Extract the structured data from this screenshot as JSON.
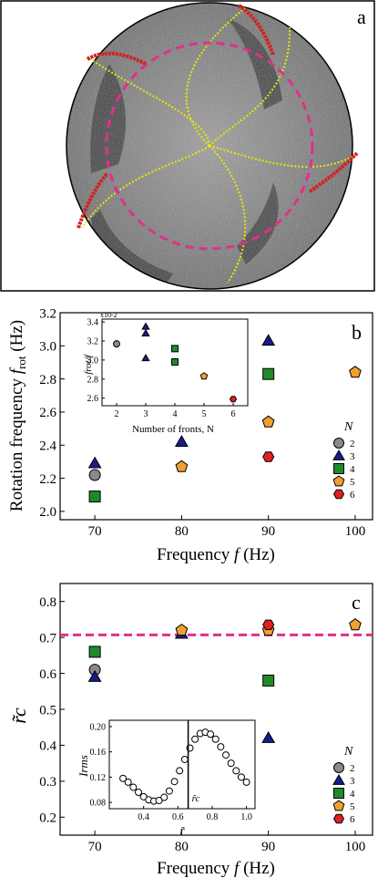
{
  "panels": {
    "a": {
      "label": "a"
    },
    "b": {
      "label": "b"
    },
    "c": {
      "label": "c"
    }
  },
  "legend_b": {
    "title": "N",
    "entries": [
      "2",
      "3",
      "4",
      "5",
      "6"
    ]
  },
  "legend_c": {
    "title": "N",
    "entries": [
      "2",
      "3",
      "4",
      "5",
      "6"
    ]
  },
  "colors": {
    "N2": "#8a8a8a",
    "N3": "#1a1a8c",
    "N4": "#1f8a2a",
    "N5": "#f0a030",
    "N6": "#e02020",
    "dashed": "#e0308a",
    "yellow": "#e8e800"
  },
  "chart_data": [
    {
      "panel": "b",
      "type": "scatter",
      "xlabel_main": "Frequency ",
      "xlabel_italic": "f",
      "xlabel_unit": " (Hz)",
      "ylabel_main": "Rotation frequency ",
      "ylabel_italic": "f",
      "ylabel_sub": "rot",
      "ylabel_unit": " (Hz)",
      "xlim": [
        66,
        102
      ],
      "ylim": [
        1.95,
        3.2
      ],
      "xticks": [
        "70",
        "80",
        "90",
        "100"
      ],
      "yticks": [
        "2.0",
        "2.2",
        "2.4",
        "2.6",
        "2.8",
        "3.0",
        "3.2"
      ],
      "series": [
        {
          "name": "2",
          "points": [
            {
              "x": 70,
              "y": 2.22
            }
          ]
        },
        {
          "name": "3",
          "points": [
            {
              "x": 70,
              "y": 2.29
            },
            {
              "x": 80,
              "y": 2.42
            },
            {
              "x": 90,
              "y": 3.03
            }
          ]
        },
        {
          "name": "4",
          "points": [
            {
              "x": 70,
              "y": 2.09
            },
            {
              "x": 90,
              "y": 2.83
            }
          ]
        },
        {
          "name": "5",
          "points": [
            {
              "x": 80,
              "y": 2.27
            },
            {
              "x": 90,
              "y": 2.54
            },
            {
              "x": 100,
              "y": 2.84
            }
          ]
        },
        {
          "name": "6",
          "points": [
            {
              "x": 90,
              "y": 2.33
            }
          ]
        }
      ]
    },
    {
      "panel": "b-inset",
      "type": "scatter",
      "xlabel": "Number of fronts, N",
      "ylabel": "frot/f",
      "yscale_note": "x10-2",
      "xlim": [
        1.5,
        6.5
      ],
      "ylim": [
        2.52,
        3.43
      ],
      "xticks": [
        "2",
        "3",
        "4",
        "5",
        "6"
      ],
      "yticks": [
        "2.6",
        "2.8",
        "3.0",
        "3.2",
        "3.4"
      ],
      "series": [
        {
          "name": "2",
          "points": [
            {
              "x": 2,
              "y": 3.17
            }
          ]
        },
        {
          "name": "3",
          "points": [
            {
              "x": 3,
              "y": 3.35
            },
            {
              "x": 3,
              "y": 3.28
            },
            {
              "x": 3,
              "y": 3.02
            }
          ]
        },
        {
          "name": "4",
          "points": [
            {
              "x": 4,
              "y": 3.12
            },
            {
              "x": 4,
              "y": 2.98
            }
          ]
        },
        {
          "name": "5",
          "points": [
            {
              "x": 5,
              "y": 2.83
            }
          ]
        },
        {
          "name": "6",
          "points": [
            {
              "x": 6,
              "y": 2.59
            }
          ]
        }
      ]
    },
    {
      "panel": "c",
      "type": "scatter",
      "xlabel_main": "Frequency ",
      "xlabel_italic": "f",
      "xlabel_unit": " (Hz)",
      "ylabel": "r̃c",
      "xlim": [
        66,
        102
      ],
      "ylim": [
        0.15,
        0.85
      ],
      "xticks": [
        "70",
        "80",
        "90",
        "100"
      ],
      "yticks": [
        "0.2",
        "0.3",
        "0.4",
        "0.5",
        "0.6",
        "0.7",
        "0.8"
      ],
      "reference_line": 0.707,
      "series": [
        {
          "name": "2",
          "points": [
            {
              "x": 70,
              "y": 0.61
            }
          ]
        },
        {
          "name": "3",
          "points": [
            {
              "x": 70,
              "y": 0.59
            },
            {
              "x": 80,
              "y": 0.71
            },
            {
              "x": 90,
              "y": 0.42
            }
          ]
        },
        {
          "name": "4",
          "points": [
            {
              "x": 70,
              "y": 0.66
            },
            {
              "x": 90,
              "y": 0.58
            }
          ]
        },
        {
          "name": "5",
          "points": [
            {
              "x": 80,
              "y": 0.72
            },
            {
              "x": 90,
              "y": 0.72
            },
            {
              "x": 100,
              "y": 0.735
            }
          ]
        },
        {
          "name": "6",
          "points": [
            {
              "x": 90,
              "y": 0.735
            }
          ]
        }
      ]
    },
    {
      "panel": "c-inset",
      "type": "line",
      "xlabel": "r̃",
      "ylabel": "Irms",
      "marker_label": "r̃c",
      "marker_x": 0.66,
      "xlim": [
        0.2,
        1.05
      ],
      "ylim": [
        0.07,
        0.21
      ],
      "xticks": [
        "0.4",
        "0.6",
        "0.8",
        "1.0"
      ],
      "yticks": [
        "0.08",
        "0.12",
        "0.16",
        "0.20"
      ],
      "x": [
        0.28,
        0.31,
        0.34,
        0.37,
        0.4,
        0.43,
        0.46,
        0.49,
        0.52,
        0.55,
        0.58,
        0.61,
        0.64,
        0.67,
        0.7,
        0.73,
        0.76,
        0.79,
        0.82,
        0.85,
        0.88,
        0.91,
        0.94,
        0.97,
        1.0
      ],
      "y": [
        0.118,
        0.112,
        0.104,
        0.096,
        0.089,
        0.084,
        0.082,
        0.083,
        0.088,
        0.098,
        0.113,
        0.13,
        0.148,
        0.166,
        0.18,
        0.189,
        0.191,
        0.188,
        0.18,
        0.168,
        0.155,
        0.142,
        0.13,
        0.12,
        0.112
      ]
    }
  ]
}
